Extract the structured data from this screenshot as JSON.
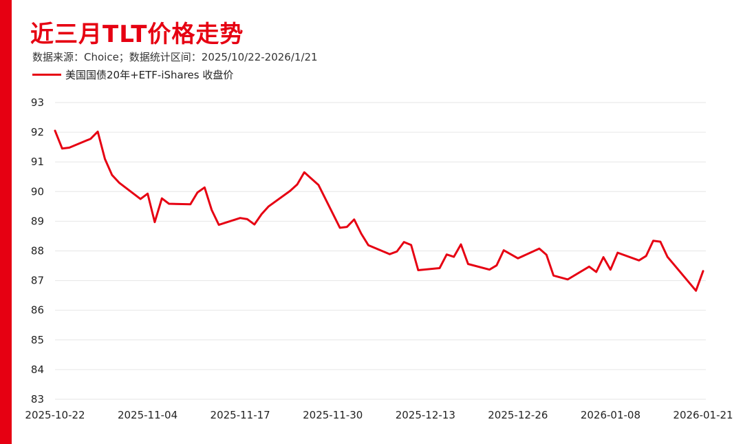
{
  "title": "近三月TLT价格走势",
  "subtitle": "数据来源：Choice；数据统计区间：2025/10/22-2026/1/21",
  "colors": {
    "accent": "#e60012",
    "grid": "#e6e6e6",
    "text": "#222222"
  },
  "chart_data": {
    "type": "line",
    "title": "近三月TLT价格走势",
    "xlabel": "",
    "ylabel": "",
    "ylim": [
      83,
      93
    ],
    "yticks": [
      "83",
      "84",
      "85",
      "86",
      "87",
      "88",
      "89",
      "90",
      "91",
      "92",
      "93"
    ],
    "xticks": [
      "2025-10-22",
      "2025-11-04",
      "2025-11-17",
      "2025-11-30",
      "2025-12-13",
      "2025-12-26",
      "2026-01-08",
      "2026-01-21"
    ],
    "grid": "horizontal",
    "legend_position": "top-left",
    "series": [
      {
        "name": "美国国债20年+ETF-iShares 收盘价",
        "color": "#e60012",
        "x": [
          "2025-10-22",
          "2025-10-23",
          "2025-10-24",
          "2025-10-27",
          "2025-10-28",
          "2025-10-29",
          "2025-10-30",
          "2025-10-31",
          "2025-11-03",
          "2025-11-04",
          "2025-11-05",
          "2025-11-06",
          "2025-11-07",
          "2025-11-10",
          "2025-11-11",
          "2025-11-12",
          "2025-11-13",
          "2025-11-14",
          "2025-11-17",
          "2025-11-18",
          "2025-11-19",
          "2025-11-20",
          "2025-11-21",
          "2025-11-24",
          "2025-11-25",
          "2025-11-26",
          "2025-11-28",
          "2025-12-01",
          "2025-12-02",
          "2025-12-03",
          "2025-12-04",
          "2025-12-05",
          "2025-12-08",
          "2025-12-09",
          "2025-12-10",
          "2025-12-11",
          "2025-12-12",
          "2025-12-15",
          "2025-12-16",
          "2025-12-17",
          "2025-12-18",
          "2025-12-19",
          "2025-12-22",
          "2025-12-23",
          "2025-12-24",
          "2025-12-26",
          "2025-12-29",
          "2025-12-30",
          "2025-12-31",
          "2026-01-02",
          "2026-01-05",
          "2026-01-06",
          "2026-01-07",
          "2026-01-08",
          "2026-01-09",
          "2026-01-12",
          "2026-01-13",
          "2026-01-14",
          "2026-01-15",
          "2026-01-16",
          "2026-01-20",
          "2026-01-21"
        ],
        "values": [
          92.05,
          91.45,
          91.48,
          91.78,
          92.02,
          91.1,
          90.56,
          90.3,
          89.75,
          89.93,
          88.97,
          89.77,
          89.59,
          89.57,
          89.97,
          90.14,
          89.38,
          88.88,
          89.11,
          89.07,
          88.89,
          89.24,
          89.5,
          90.02,
          90.24,
          90.65,
          90.22,
          88.78,
          88.81,
          89.06,
          88.58,
          88.19,
          87.89,
          87.98,
          88.3,
          88.2,
          87.35,
          87.42,
          87.88,
          87.8,
          88.22,
          87.56,
          87.37,
          87.51,
          88.02,
          87.75,
          88.08,
          87.87,
          87.17,
          87.04,
          87.47,
          87.29,
          87.79,
          87.37,
          87.94,
          87.68,
          87.83,
          88.34,
          88.31,
          87.8,
          86.66,
          87.32
        ]
      }
    ]
  }
}
